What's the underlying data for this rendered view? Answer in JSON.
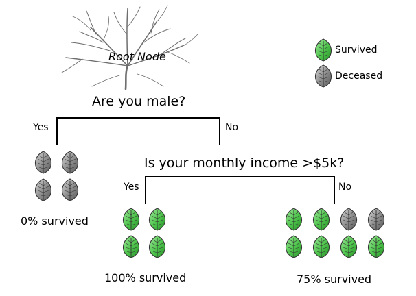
{
  "diagram": {
    "root_label": "Root Node",
    "question_1": "Are you male?",
    "question_2": "Is your monthly income >$5k?",
    "edges": {
      "q1_yes": "Yes",
      "q1_no": "No",
      "q2_yes": "Yes",
      "q2_no": "No"
    },
    "outcomes": {
      "male": "0% survived",
      "female_high_income": "100% survived",
      "female_low_income": "75% survived"
    },
    "leaf_groups": {
      "male": [
        "deceased",
        "deceased",
        "deceased",
        "deceased"
      ],
      "female_high_income": [
        "survived",
        "survived",
        "survived",
        "survived"
      ],
      "female_low_income": [
        "survived",
        "survived",
        "deceased",
        "deceased",
        "survived",
        "survived",
        "survived",
        "survived"
      ]
    }
  },
  "legend": {
    "survived_label": "Survived",
    "deceased_label": "Deceased"
  },
  "colors": {
    "survived": "#4cc34a",
    "survived_light": "#9ee89a",
    "survived_dark": "#1f7a1f",
    "deceased": "#8a8a8a",
    "deceased_light": "#cfcfcf",
    "deceased_dark": "#4e4e4e",
    "branches": "#6e6e6e"
  }
}
